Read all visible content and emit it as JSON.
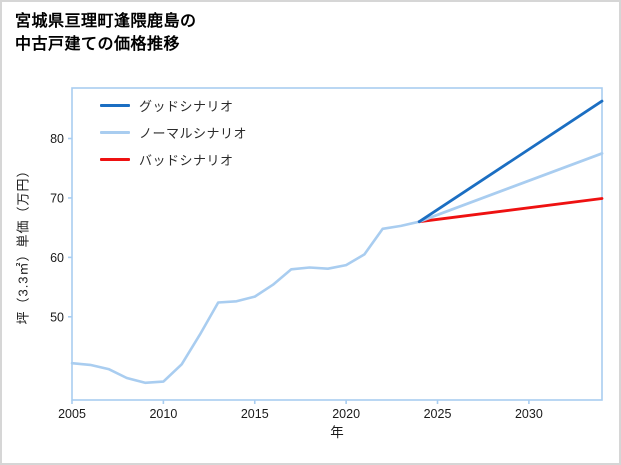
{
  "chart_data": {
    "type": "line",
    "title": "宮城県亘理町逢隈鹿島の中古戸建ての価格推移",
    "title_lines": [
      "宮城県亘理町逢隈鹿島の",
      "中古戸建ての価格推移"
    ],
    "xlabel": "年",
    "ylabel": "坪（3.3㎡）単価（万円）",
    "xlim": [
      2005,
      2034
    ],
    "ylim": [
      36,
      88.5
    ],
    "x_ticks": [
      2005,
      2010,
      2015,
      2020,
      2025,
      2030
    ],
    "y_ticks": [
      50,
      60,
      70,
      80
    ],
    "grid": false,
    "legend_position": "upper-left",
    "axis_color": "#a9cdf0",
    "tick_label_color": "#1a1a1a",
    "history": {
      "color": "#a9cdf0",
      "x": [
        2005,
        2006,
        2007,
        2008,
        2009,
        2010,
        2011,
        2012,
        2013,
        2014,
        2015,
        2016,
        2017,
        2018,
        2019,
        2020,
        2021,
        2022,
        2023,
        2024
      ],
      "values": [
        42.2,
        41.9,
        41.2,
        39.7,
        38.9,
        39.1,
        42.0,
        47.0,
        52.4,
        52.6,
        53.4,
        55.4,
        58.0,
        58.3,
        58.1,
        58.7,
        60.5,
        64.8,
        65.3,
        66.0
      ]
    },
    "series": [
      {
        "name": "グッドシナリオ",
        "color": "#1b6ec2",
        "x": [
          2024,
          2034
        ],
        "values": [
          66.0,
          86.3
        ]
      },
      {
        "name": "ノーマルシナリオ",
        "color": "#a9cdf0",
        "x": [
          2024,
          2034
        ],
        "values": [
          66.0,
          77.5
        ]
      },
      {
        "name": "バッドシナリオ",
        "color": "#ee1111",
        "x": [
          2024,
          2034
        ],
        "values": [
          66.0,
          69.9
        ]
      }
    ]
  }
}
